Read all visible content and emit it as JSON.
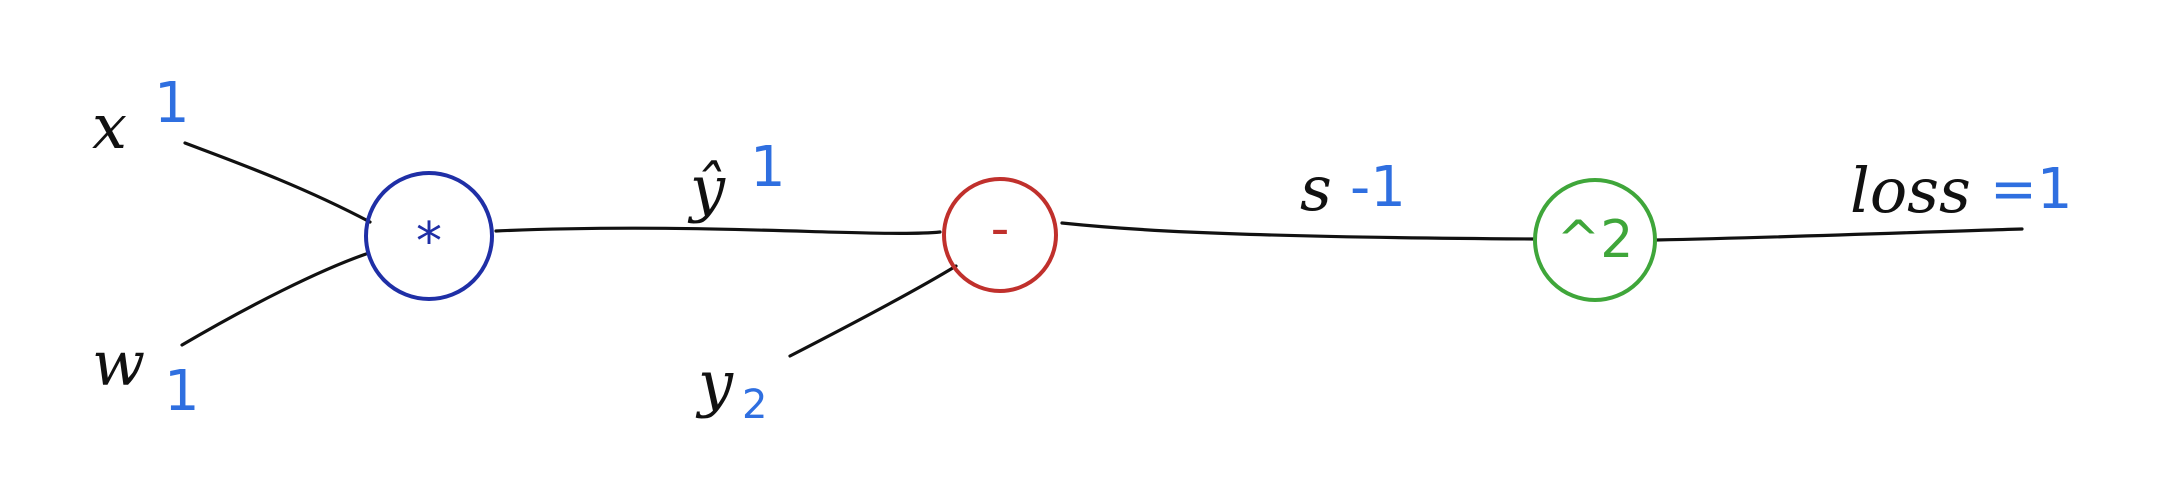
{
  "colors": {
    "ink": "#111111",
    "value": "#2f6fe0",
    "mul_node": "#1f2fa6",
    "sub_node": "#c0302c",
    "pow_node": "#3fa63a"
  },
  "nodes": {
    "mul": {
      "symbol": "*"
    },
    "sub": {
      "symbol": "-"
    },
    "pow": {
      "symbol": "^2"
    }
  },
  "inputs": {
    "x": {
      "name": "x",
      "value": "1"
    },
    "w": {
      "name": "w",
      "value": "1"
    },
    "y": {
      "name": "y",
      "value": "2"
    }
  },
  "edges": {
    "yhat": {
      "name": "ŷ",
      "value": "1"
    },
    "s": {
      "name": "s",
      "value": "-1"
    },
    "loss": {
      "name": "loss",
      "value": "=1"
    }
  }
}
